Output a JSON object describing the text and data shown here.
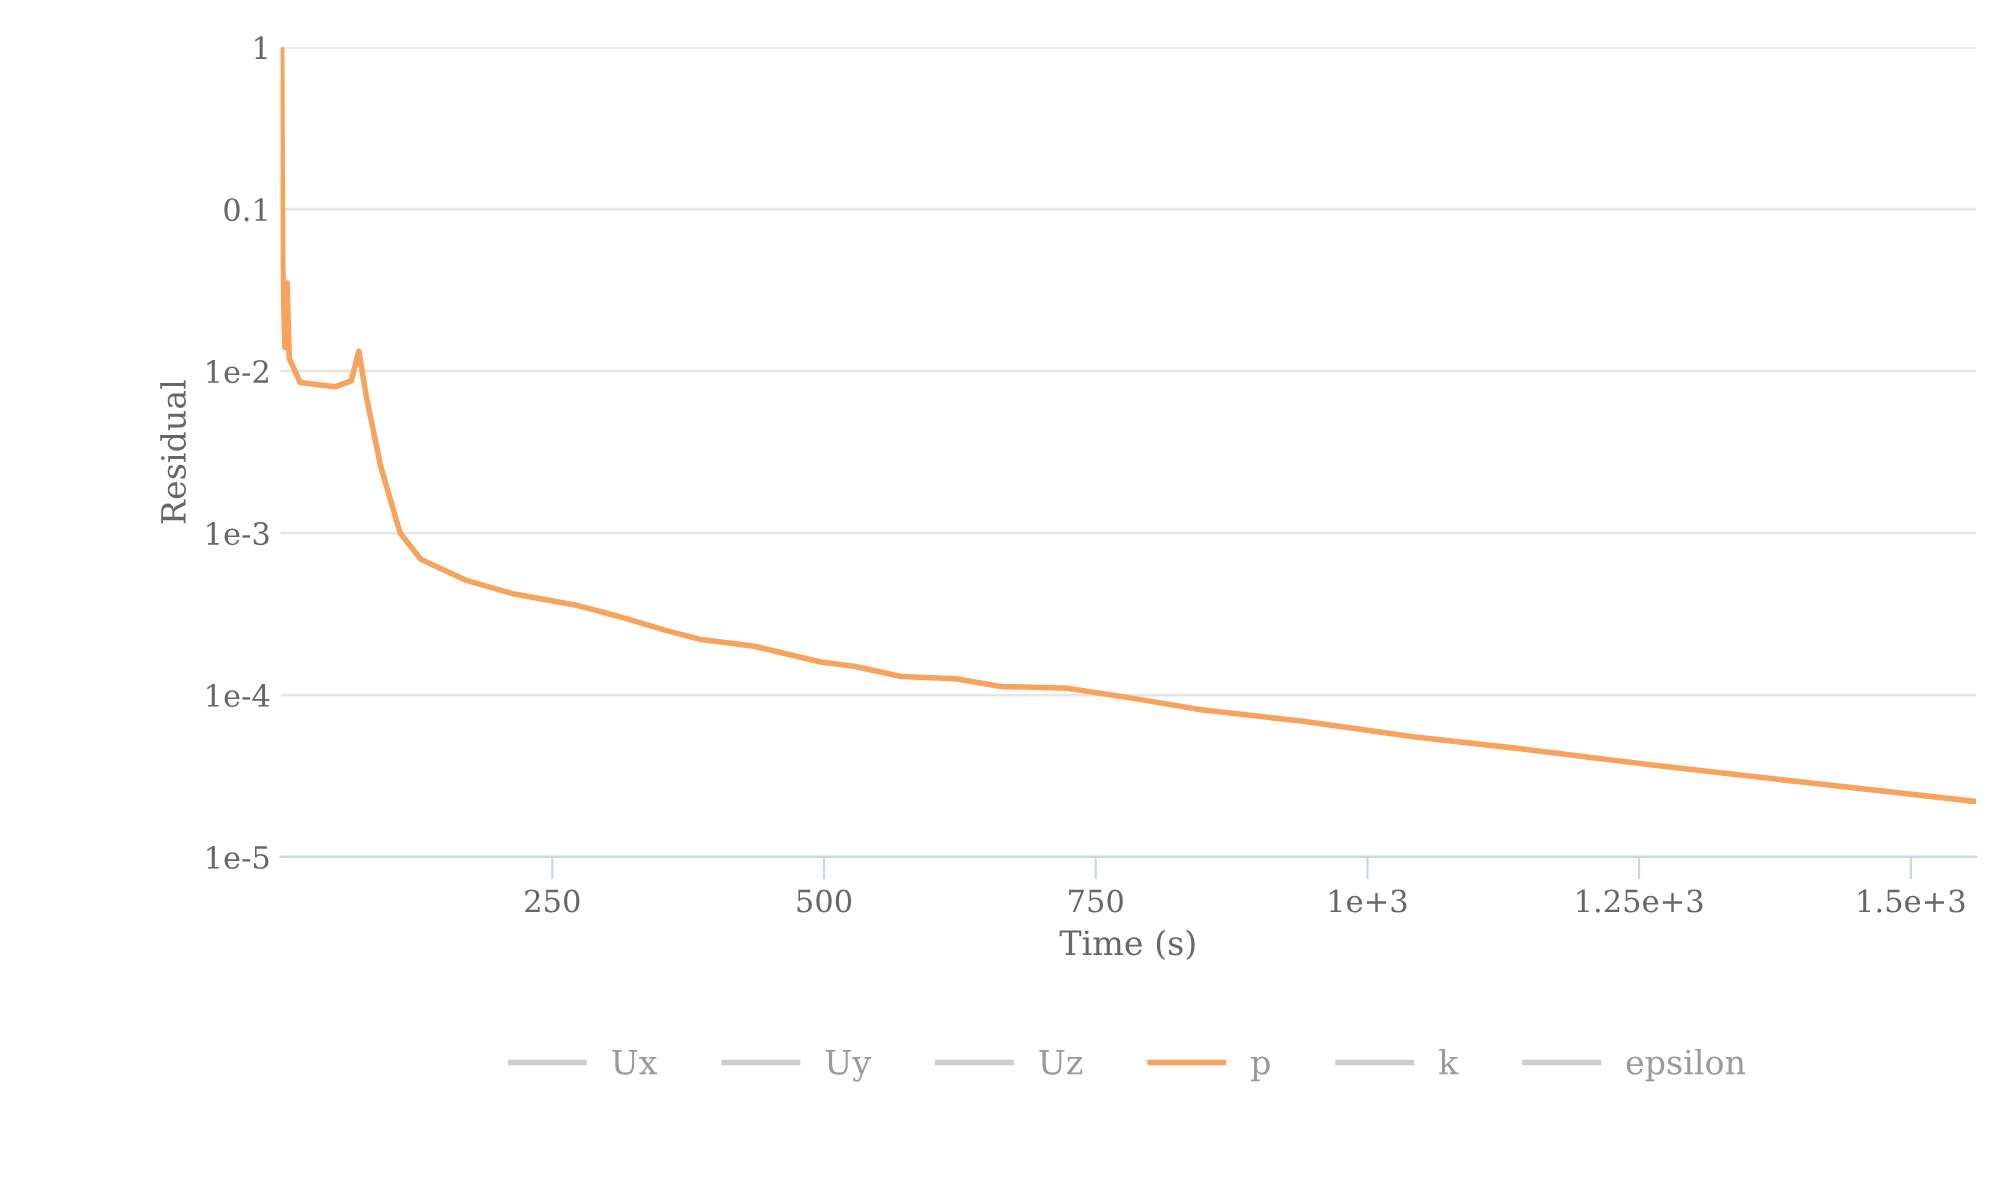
{
  "chart_data": {
    "type": "line",
    "xlabel": "Time (s)",
    "ylabel": "Residual",
    "log": "y",
    "grid": "y",
    "legend": "bottom",
    "xlim": [
      0,
      1560
    ],
    "ylim": [
      1e-05,
      1
    ],
    "xticks": [
      250,
      500,
      750,
      {
        "value": 1000,
        "label": "1e+3"
      },
      {
        "value": 1250,
        "label": "1.25e+3"
      },
      {
        "value": 1500,
        "label": "1.5e+3"
      }
    ],
    "yticks": [
      {
        "value": 1e-05,
        "label": "1e-5"
      },
      {
        "value": 0.0001,
        "label": "1e-4"
      },
      {
        "value": 0.001,
        "label": "1e-3"
      },
      {
        "value": 0.01,
        "label": "1e-2"
      },
      0.1,
      1
    ],
    "series": [
      {
        "name": "Ux",
        "color": "#cccccc"
      },
      {
        "name": "Uy",
        "color": "#cccccc"
      },
      {
        "name": "Uz",
        "color": "#cccccc"
      },
      {
        "name": "p",
        "color": "#f7a35c",
        "x": [
          1,
          2,
          4,
          6,
          8,
          18,
          50,
          65,
          72,
          79,
          92,
          110,
          129,
          171,
          215,
          271,
          308,
          355,
          387,
          436,
          497,
          529,
          571,
          621,
          663,
          724,
          786,
          847,
          939,
          1044,
          1136,
          1276,
          1400,
          1560
        ],
        "values": [
          1,
          0.045,
          0.014,
          0.035,
          0.012,
          0.0085,
          0.008,
          0.0087,
          0.0133,
          0.0069,
          0.0026,
          0.001,
          0.00069,
          0.00051,
          0.00042,
          0.00036,
          0.00031,
          0.00025,
          0.00022,
          0.0002,
          0.00016,
          0.00015,
          0.00013,
          0.000126,
          0.000113,
          0.00011,
          9.5e-05,
          8.1e-05,
          6.9e-05,
          5.5e-05,
          4.7e-05,
          3.6e-05,
          2.9e-05,
          2.2e-05
        ]
      },
      {
        "name": "k",
        "color": "#cccccc"
      },
      {
        "name": "epsilon",
        "color": "#cccccc"
      }
    ]
  }
}
